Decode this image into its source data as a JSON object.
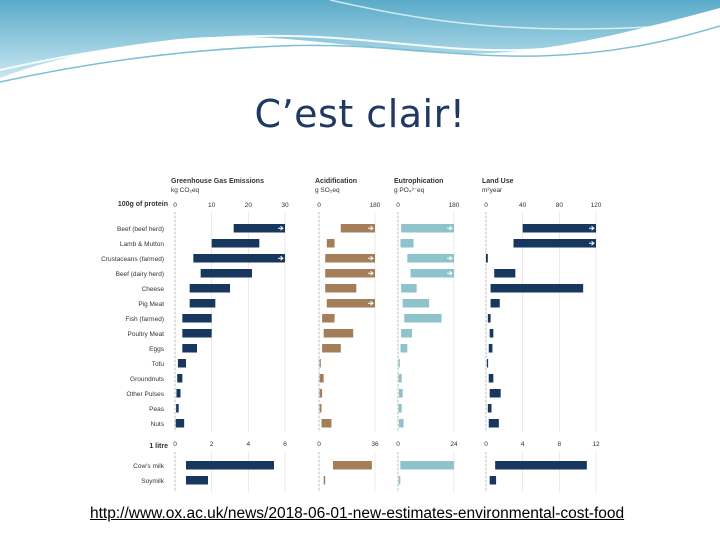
{
  "slide": {
    "title": "C’est clair!",
    "link": "http://www.ox.ac.uk/news/2018-06-01-new-estimates-environmental-cost-food"
  },
  "colors": {
    "title": "#1f3864",
    "wave": "#6fb3c8",
    "ghg": "#17375e",
    "acid": "#a37e58",
    "eutro": "#8ec3cc",
    "land": "#17375e"
  },
  "chart_data": {
    "type": "bar",
    "orientation": "horizontal",
    "group_labels": [
      "100g of protein",
      "1 litre"
    ],
    "categories_protein": [
      "Beef (beef herd)",
      "Lamb & Mutton",
      "Crustaceans (farmed)",
      "Beef (dairy herd)",
      "Cheese",
      "Pig Meat",
      "Fish (farmed)",
      "Poultry Meat",
      "Eggs",
      "Tofu",
      "Groundnuts",
      "Other Pulses",
      "Peas",
      "Nuts"
    ],
    "categories_litre": [
      "Cow's milk",
      "Soymilk"
    ],
    "panels": [
      {
        "name": "Greenhouse Gas Emissions",
        "unit": "kg CO₂eq",
        "color_key": "ghg",
        "protein_xlim": [
          0,
          30
        ],
        "protein_ticks": [
          "0",
          "10",
          "20",
          "30"
        ],
        "litre_xlim": [
          0,
          6
        ],
        "litre_ticks": [
          "0",
          "2",
          "4",
          "6"
        ],
        "protein_ranges": [
          [
            16,
            30
          ],
          [
            10,
            23
          ],
          [
            5,
            30
          ],
          [
            7,
            21
          ],
          [
            4,
            15
          ],
          [
            4,
            11
          ],
          [
            2,
            10
          ],
          [
            2,
            10
          ],
          [
            2,
            6
          ],
          [
            0.8,
            3
          ],
          [
            0.6,
            2
          ],
          [
            0.4,
            1.5
          ],
          [
            0.3,
            1
          ],
          [
            0.2,
            2.5
          ]
        ],
        "protein_overflow": [
          true,
          false,
          true,
          false,
          false,
          false,
          false,
          false,
          false,
          false,
          false,
          false,
          false,
          false
        ],
        "litre_ranges": [
          [
            0.6,
            5.4
          ],
          [
            0.6,
            1.8
          ]
        ]
      },
      {
        "name": "Acidification",
        "unit": "g SO₂eq",
        "color_key": "acid",
        "protein_xlim": [
          0,
          180
        ],
        "protein_ticks": [
          "0",
          "180"
        ],
        "litre_xlim": [
          0,
          36
        ],
        "litre_ticks": [
          "0",
          "36"
        ],
        "protein_ranges": [
          [
            70,
            180
          ],
          [
            25,
            50
          ],
          [
            20,
            180
          ],
          [
            20,
            180
          ],
          [
            20,
            120
          ],
          [
            25,
            180
          ],
          [
            10,
            50
          ],
          [
            15,
            110
          ],
          [
            10,
            70
          ],
          [
            2,
            5
          ],
          [
            2,
            15
          ],
          [
            2,
            10
          ],
          [
            2,
            8
          ],
          [
            8,
            40
          ]
        ],
        "protein_overflow": [
          true,
          false,
          true,
          true,
          false,
          true,
          false,
          false,
          false,
          false,
          false,
          false,
          false,
          false
        ],
        "litre_ranges": [
          [
            9,
            34
          ],
          [
            3,
            4
          ]
        ]
      },
      {
        "name": "Eutrophication",
        "unit": "g PO₄³⁻eq",
        "color_key": "eutro",
        "protein_xlim": [
          0,
          180
        ],
        "protein_ticks": [
          "0",
          "180"
        ],
        "litre_xlim": [
          0,
          24
        ],
        "litre_ticks": [
          "0",
          "24"
        ],
        "protein_ranges": [
          [
            10,
            180
          ],
          [
            8,
            50
          ],
          [
            30,
            180
          ],
          [
            40,
            180
          ],
          [
            10,
            60
          ],
          [
            15,
            100
          ],
          [
            20,
            140
          ],
          [
            10,
            45
          ],
          [
            8,
            30
          ],
          [
            2,
            6
          ],
          [
            2,
            12
          ],
          [
            3,
            15
          ],
          [
            2,
            12
          ],
          [
            3,
            18
          ]
        ],
        "protein_overflow": [
          true,
          false,
          true,
          true,
          false,
          false,
          false,
          false,
          false,
          false,
          false,
          false,
          false,
          false
        ],
        "litre_ranges": [
          [
            1,
            24
          ],
          [
            0.3,
            1
          ]
        ]
      },
      {
        "name": "Land Use",
        "unit": "m²year",
        "color_key": "land",
        "protein_xlim": [
          0,
          120
        ],
        "protein_ticks": [
          "0",
          "40",
          "80",
          "120"
        ],
        "litre_xlim": [
          0,
          12
        ],
        "litre_ticks": [
          "0",
          "4",
          "8",
          "12"
        ],
        "protein_ranges": [
          [
            40,
            120
          ],
          [
            30,
            120
          ],
          [
            0,
            2
          ],
          [
            9,
            32
          ],
          [
            5,
            106
          ],
          [
            5,
            15
          ],
          [
            2,
            5
          ],
          [
            4,
            8
          ],
          [
            3,
            7
          ],
          [
            1,
            2
          ],
          [
            3,
            8
          ],
          [
            4,
            16
          ],
          [
            2,
            6
          ],
          [
            3,
            14
          ]
        ],
        "protein_overflow": [
          true,
          true,
          false,
          false,
          false,
          false,
          false,
          false,
          false,
          false,
          false,
          false,
          false,
          false
        ],
        "litre_ranges": [
          [
            1,
            11
          ],
          [
            0.4,
            1.1
          ]
        ]
      }
    ]
  }
}
